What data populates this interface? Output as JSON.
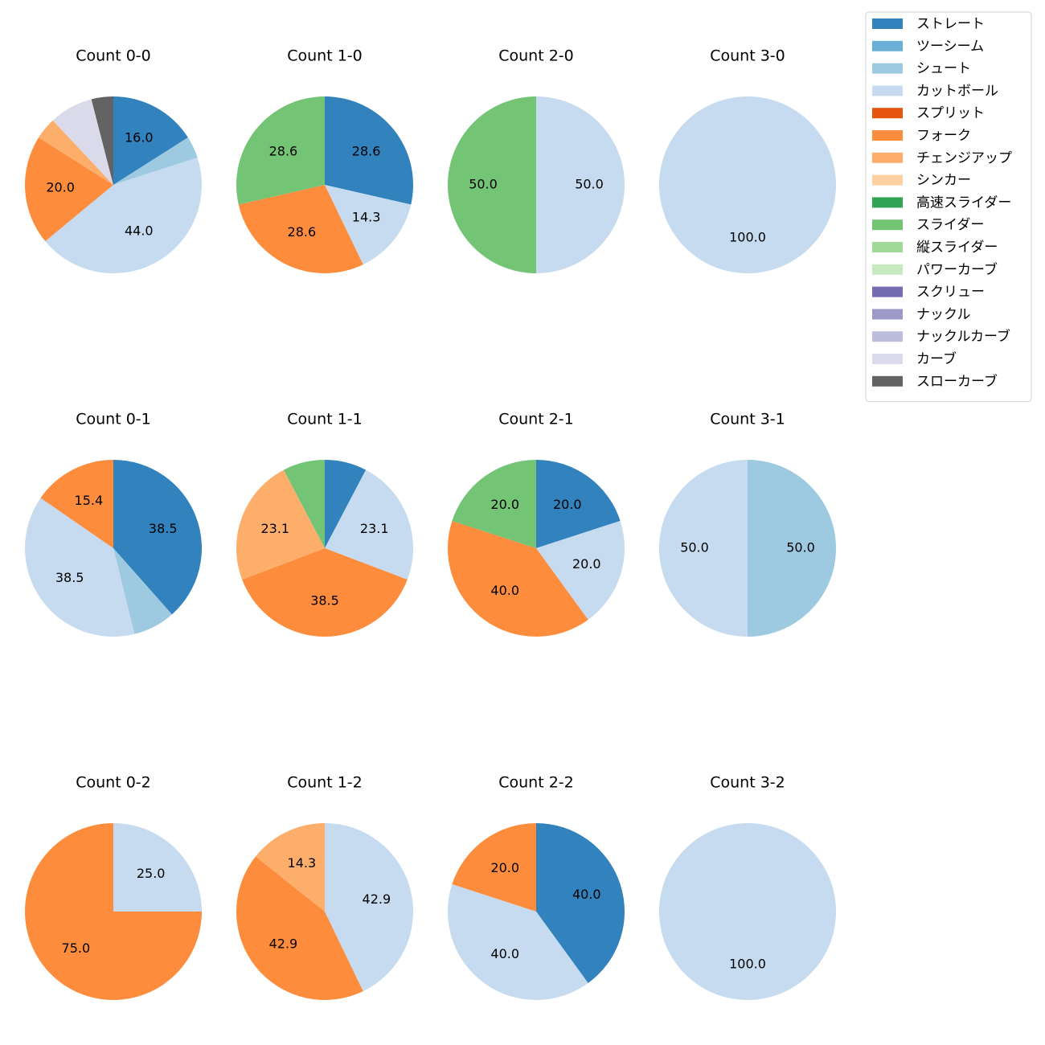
{
  "chart_data": {
    "type": "pie",
    "legend_placement": "top-right",
    "legend": [
      {
        "name": "ストレート",
        "color": "#3182bd"
      },
      {
        "name": "ツーシーム",
        "color": "#6baed6"
      },
      {
        "name": "シュート",
        "color": "#9ecae1"
      },
      {
        "name": "カットボール",
        "color": "#c6dbef"
      },
      {
        "name": "スプリット",
        "color": "#e6550d"
      },
      {
        "name": "フォーク",
        "color": "#fd8d3c"
      },
      {
        "name": "チェンジアップ",
        "color": "#fdae6b"
      },
      {
        "name": "シンカー",
        "color": "#fdd0a2"
      },
      {
        "name": "高速スライダー",
        "color": "#31a354"
      },
      {
        "name": "スライダー",
        "color": "#74c476"
      },
      {
        "name": "縦スライダー",
        "color": "#a1d99b"
      },
      {
        "name": "パワーカーブ",
        "color": "#c7e9c0"
      },
      {
        "name": "スクリュー",
        "color": "#756bb1"
      },
      {
        "name": "ナックル",
        "color": "#9e9ac8"
      },
      {
        "name": "ナックルカーブ",
        "color": "#bcbddc"
      },
      {
        "name": "カーブ",
        "color": "#dadaeb"
      },
      {
        "name": "スローカーブ",
        "color": "#636363"
      }
    ],
    "pies": [
      {
        "title": "Count 0-0",
        "slices": [
          {
            "name": "ストレート",
            "value": 16.0,
            "label": "16.0"
          },
          {
            "name": "シュート",
            "value": 4.0,
            "label": ""
          },
          {
            "name": "カットボール",
            "value": 44.0,
            "label": "44.0"
          },
          {
            "name": "フォーク",
            "value": 20.0,
            "label": "20.0"
          },
          {
            "name": "チェンジアップ",
            "value": 4.0,
            "label": ""
          },
          {
            "name": "カーブ",
            "value": 8.0,
            "label": ""
          },
          {
            "name": "スローカーブ",
            "value": 4.0,
            "label": ""
          }
        ]
      },
      {
        "title": "Count 1-0",
        "slices": [
          {
            "name": "ストレート",
            "value": 28.6,
            "label": "28.6"
          },
          {
            "name": "カットボール",
            "value": 14.3,
            "label": "14.3"
          },
          {
            "name": "フォーク",
            "value": 28.6,
            "label": "28.6"
          },
          {
            "name": "スライダー",
            "value": 28.6,
            "label": "28.6"
          }
        ]
      },
      {
        "title": "Count 2-0",
        "slices": [
          {
            "name": "カットボール",
            "value": 50.0,
            "label": "50.0"
          },
          {
            "name": "スライダー",
            "value": 50.0,
            "label": "50.0"
          }
        ]
      },
      {
        "title": "Count 3-0",
        "slices": [
          {
            "name": "カットボール",
            "value": 100.0,
            "label": "100.0"
          }
        ]
      },
      {
        "title": "Count 0-1",
        "slices": [
          {
            "name": "ストレート",
            "value": 38.5,
            "label": "38.5"
          },
          {
            "name": "シュート",
            "value": 7.7,
            "label": ""
          },
          {
            "name": "カットボール",
            "value": 38.5,
            "label": "38.5"
          },
          {
            "name": "フォーク",
            "value": 15.4,
            "label": "15.4"
          }
        ]
      },
      {
        "title": "Count 1-1",
        "slices": [
          {
            "name": "ストレート",
            "value": 7.7,
            "label": ""
          },
          {
            "name": "カットボール",
            "value": 23.1,
            "label": "23.1"
          },
          {
            "name": "フォーク",
            "value": 38.5,
            "label": "38.5"
          },
          {
            "name": "チェンジアップ",
            "value": 23.1,
            "label": "23.1"
          },
          {
            "name": "スライダー",
            "value": 7.7,
            "label": ""
          }
        ]
      },
      {
        "title": "Count 2-1",
        "slices": [
          {
            "name": "ストレート",
            "value": 20.0,
            "label": "20.0"
          },
          {
            "name": "カットボール",
            "value": 20.0,
            "label": "20.0"
          },
          {
            "name": "フォーク",
            "value": 40.0,
            "label": "40.0"
          },
          {
            "name": "スライダー",
            "value": 20.0,
            "label": "20.0"
          }
        ]
      },
      {
        "title": "Count 3-1",
        "slices": [
          {
            "name": "シュート",
            "value": 50.0,
            "label": "50.0"
          },
          {
            "name": "カットボール",
            "value": 50.0,
            "label": "50.0"
          }
        ]
      },
      {
        "title": "Count 0-2",
        "slices": [
          {
            "name": "カットボール",
            "value": 25.0,
            "label": "25.0"
          },
          {
            "name": "フォーク",
            "value": 75.0,
            "label": "75.0"
          }
        ]
      },
      {
        "title": "Count 1-2",
        "slices": [
          {
            "name": "カットボール",
            "value": 42.9,
            "label": "42.9"
          },
          {
            "name": "フォーク",
            "value": 42.9,
            "label": "42.9"
          },
          {
            "name": "チェンジアップ",
            "value": 14.3,
            "label": "14.3"
          }
        ]
      },
      {
        "title": "Count 2-2",
        "slices": [
          {
            "name": "ストレート",
            "value": 40.0,
            "label": "40.0"
          },
          {
            "name": "カットボール",
            "value": 40.0,
            "label": "40.0"
          },
          {
            "name": "フォーク",
            "value": 20.0,
            "label": "20.0"
          }
        ]
      },
      {
        "title": "Count 3-2",
        "slices": [
          {
            "name": "カットボール",
            "value": 100.0,
            "label": "100.0"
          }
        ]
      }
    ]
  }
}
